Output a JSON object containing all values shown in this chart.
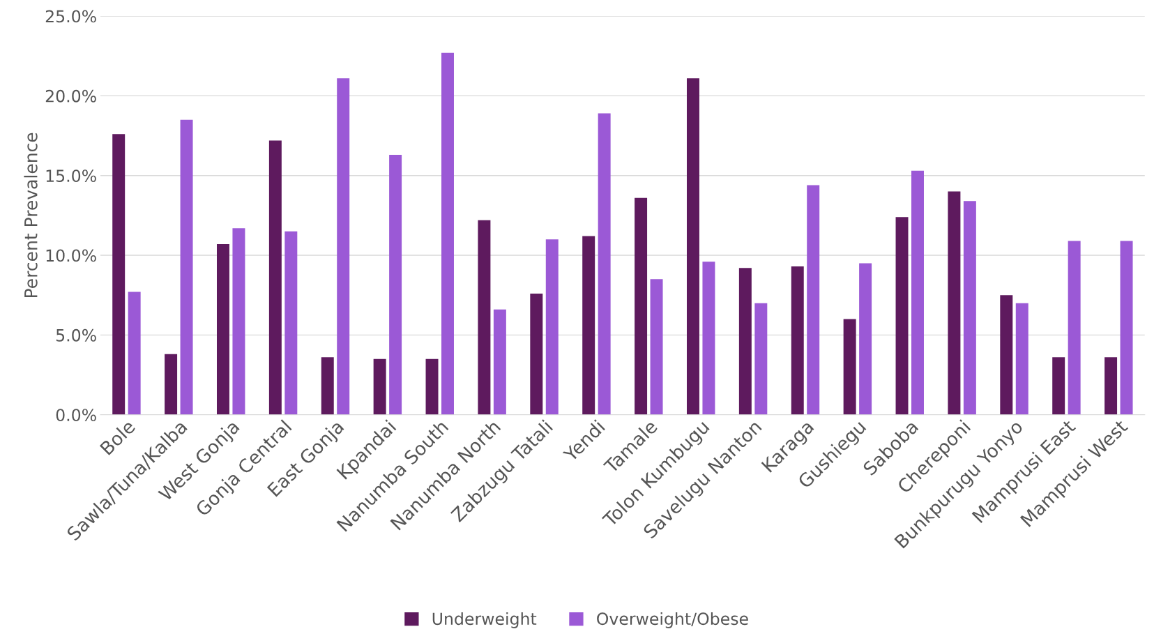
{
  "chart_data": {
    "type": "bar",
    "ylabel": "Percent Prevalence",
    "categories": [
      "Bole",
      "Sawla/Tuna/Kalba",
      "West Gonja",
      "Gonja Central",
      "East Gonja",
      "Kpandai",
      "Nanumba South",
      "Nanumba North",
      "Zabzugu Tatali",
      "Yendi",
      "Tamale",
      "Tolon Kumbugu",
      "Savelugu Nanton",
      "Karaga",
      "Gushiegu",
      "Saboba",
      "Chereponi",
      "Bunkpurugu Yonyo",
      "Mamprusi East",
      "Mamprusi West"
    ],
    "series": [
      {
        "name": "Underweight",
        "color": "#5e1a5e",
        "values": [
          17.6,
          3.8,
          10.7,
          17.2,
          3.6,
          3.5,
          3.5,
          12.2,
          7.6,
          11.2,
          13.6,
          21.1,
          9.2,
          9.3,
          6.0,
          12.4,
          14.0,
          7.5,
          3.6,
          3.6
        ]
      },
      {
        "name": "Overweight/Obese",
        "color": "#9b59d6",
        "values": [
          7.7,
          18.5,
          11.7,
          11.5,
          21.1,
          16.3,
          22.7,
          6.6,
          11.0,
          18.9,
          8.5,
          9.6,
          7.0,
          14.4,
          9.5,
          15.3,
          13.4,
          7.0,
          10.9,
          10.9
        ]
      }
    ],
    "ylim": [
      0,
      25
    ],
    "yticks": [
      {
        "value": 0,
        "label": "0.0%"
      },
      {
        "value": 5,
        "label": "5.0%"
      },
      {
        "value": 10,
        "label": "10.0%"
      },
      {
        "value": 15,
        "label": "15.0%"
      },
      {
        "value": 20,
        "label": "20.0%"
      },
      {
        "value": 25,
        "label": "25.0%"
      }
    ],
    "grid": "y",
    "legend": "bottom"
  }
}
